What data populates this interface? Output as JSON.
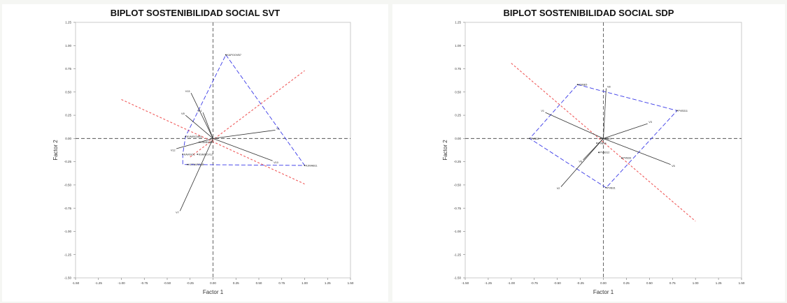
{
  "chart_data": [
    {
      "type": "biplot",
      "title": "BIPLOT SOSTENIBILIDAD SOCIAL SVT",
      "xlabel": "Factor 1",
      "ylabel": "Factor 2",
      "xlim": [
        -1.5,
        1.5
      ],
      "ylim": [
        -1.5,
        1.25
      ],
      "xticks": [
        "-1.50",
        "-1.25",
        "-1.00",
        "-0.75",
        "-0.50",
        "-0.25",
        "0.00",
        "0.25",
        "0.50",
        "0.75",
        "1.00",
        "1.25",
        "1.50"
      ],
      "yticks": [
        "1.25",
        "1.00",
        "0.75",
        "0.50",
        "0.25",
        "0.00",
        "-0.25",
        "-0.50",
        "-0.75",
        "-1.00",
        "-1.25",
        "-1.50"
      ],
      "grid": false,
      "colors": {
        "vectors": "#333333",
        "hull": "#3a3ae8",
        "diagonal": "#f05a5a",
        "axes": "#555555"
      },
      "vectors": [
        {
          "label": "V13",
          "x": -0.24,
          "y": 0.49
        },
        {
          "label": "V8",
          "x": -0.3,
          "y": 0.25
        },
        {
          "label": "V11",
          "x": -0.11,
          "y": 0.28
        },
        {
          "label": "V1",
          "x": 0.68,
          "y": 0.09
        },
        {
          "label": "V10",
          "x": 0.65,
          "y": -0.24
        },
        {
          "label": "V12",
          "x": -0.4,
          "y": -0.11
        },
        {
          "label": "V7",
          "x": -0.36,
          "y": -0.78
        }
      ],
      "points": [
        {
          "label": "KAPOOVB7",
          "x": 0.14,
          "y": 0.9
        },
        {
          "label": "KVMISCMB1",
          "x": -0.3,
          "y": 0.02
        },
        {
          "label": "KSMEABR",
          "x": -0.15,
          "y": -0.04
        },
        {
          "label": "KAVISOL",
          "x": -0.33,
          "y": -0.17
        },
        {
          "label": "KSMSCV12",
          "x": -0.17,
          "y": -0.17
        },
        {
          "label": "KCTAVR7AR",
          "x": -0.28,
          "y": -0.28
        },
        {
          "label": "KJMAB11",
          "x": 1.0,
          "y": -0.29
        }
      ],
      "hull": [
        [
          0.14,
          0.9
        ],
        [
          1.0,
          -0.29
        ],
        [
          -0.33,
          -0.28
        ],
        [
          -0.33,
          -0.17
        ],
        [
          -0.3,
          0.02
        ]
      ],
      "diagonals": [
        [
          [
            -1.0,
            0.42
          ],
          [
            1.0,
            -0.49
          ]
        ],
        [
          [
            -0.25,
            -0.2
          ],
          [
            1.0,
            0.73
          ]
        ]
      ]
    },
    {
      "type": "biplot",
      "title": "BIPLOT SOSTENIBILIDAD SOCIAL SDP",
      "xlabel": "Factor 1",
      "ylabel": "Factor 2",
      "xlim": [
        -1.5,
        1.5
      ],
      "ylim": [
        -1.5,
        1.25
      ],
      "xticks": [
        "-1.50",
        "-1.25",
        "-1.00",
        "-0.75",
        "-0.50",
        "-0.25",
        "0.00",
        "0.25",
        "0.50",
        "0.75",
        "1.00",
        "1.25",
        "1.50"
      ],
      "yticks": [
        "1.25",
        "1.00",
        "0.75",
        "0.50",
        "0.25",
        "0.00",
        "-0.25",
        "-0.50",
        "-0.75",
        "-1.00",
        "-1.25",
        "-1.50"
      ],
      "grid": false,
      "colors": {
        "vectors": "#333333",
        "hull": "#3a3ae8",
        "diagonal": "#f05a5a",
        "axes": "#555555"
      },
      "vectors": [
        {
          "label": "V8",
          "x": 0.03,
          "y": 0.54
        },
        {
          "label": "V1",
          "x": -0.63,
          "y": 0.28
        },
        {
          "label": "V3",
          "x": 0.48,
          "y": 0.16
        },
        {
          "label": "V5",
          "x": 0.73,
          "y": -0.28
        },
        {
          "label": "V6",
          "x": -0.22,
          "y": -0.23
        },
        {
          "label": "V2",
          "x": -0.46,
          "y": -0.52
        }
      ],
      "points": [
        {
          "label": "PVBE5",
          "x": -0.28,
          "y": 0.58
        },
        {
          "label": "PVB311",
          "x": 0.8,
          "y": 0.3
        },
        {
          "label": "PVB32",
          "x": -0.8,
          "y": 0.0
        },
        {
          "label": "PVB321",
          "x": -0.03,
          "y": 0.0
        },
        {
          "label": "PVB34",
          "x": -0.07,
          "y": -0.05
        },
        {
          "label": "PVB312",
          "x": -0.05,
          "y": -0.15
        },
        {
          "label": "PVB33",
          "x": 0.2,
          "y": -0.21
        },
        {
          "label": "PVB31",
          "x": 0.03,
          "y": -0.53
        }
      ],
      "hull": [
        [
          -0.28,
          0.58
        ],
        [
          0.8,
          0.3
        ],
        [
          0.03,
          -0.53
        ],
        [
          -0.8,
          0.0
        ]
      ],
      "diagonals": [
        [
          [
            -1.0,
            0.81
          ],
          [
            1.0,
            -0.89
          ]
        ]
      ]
    }
  ]
}
